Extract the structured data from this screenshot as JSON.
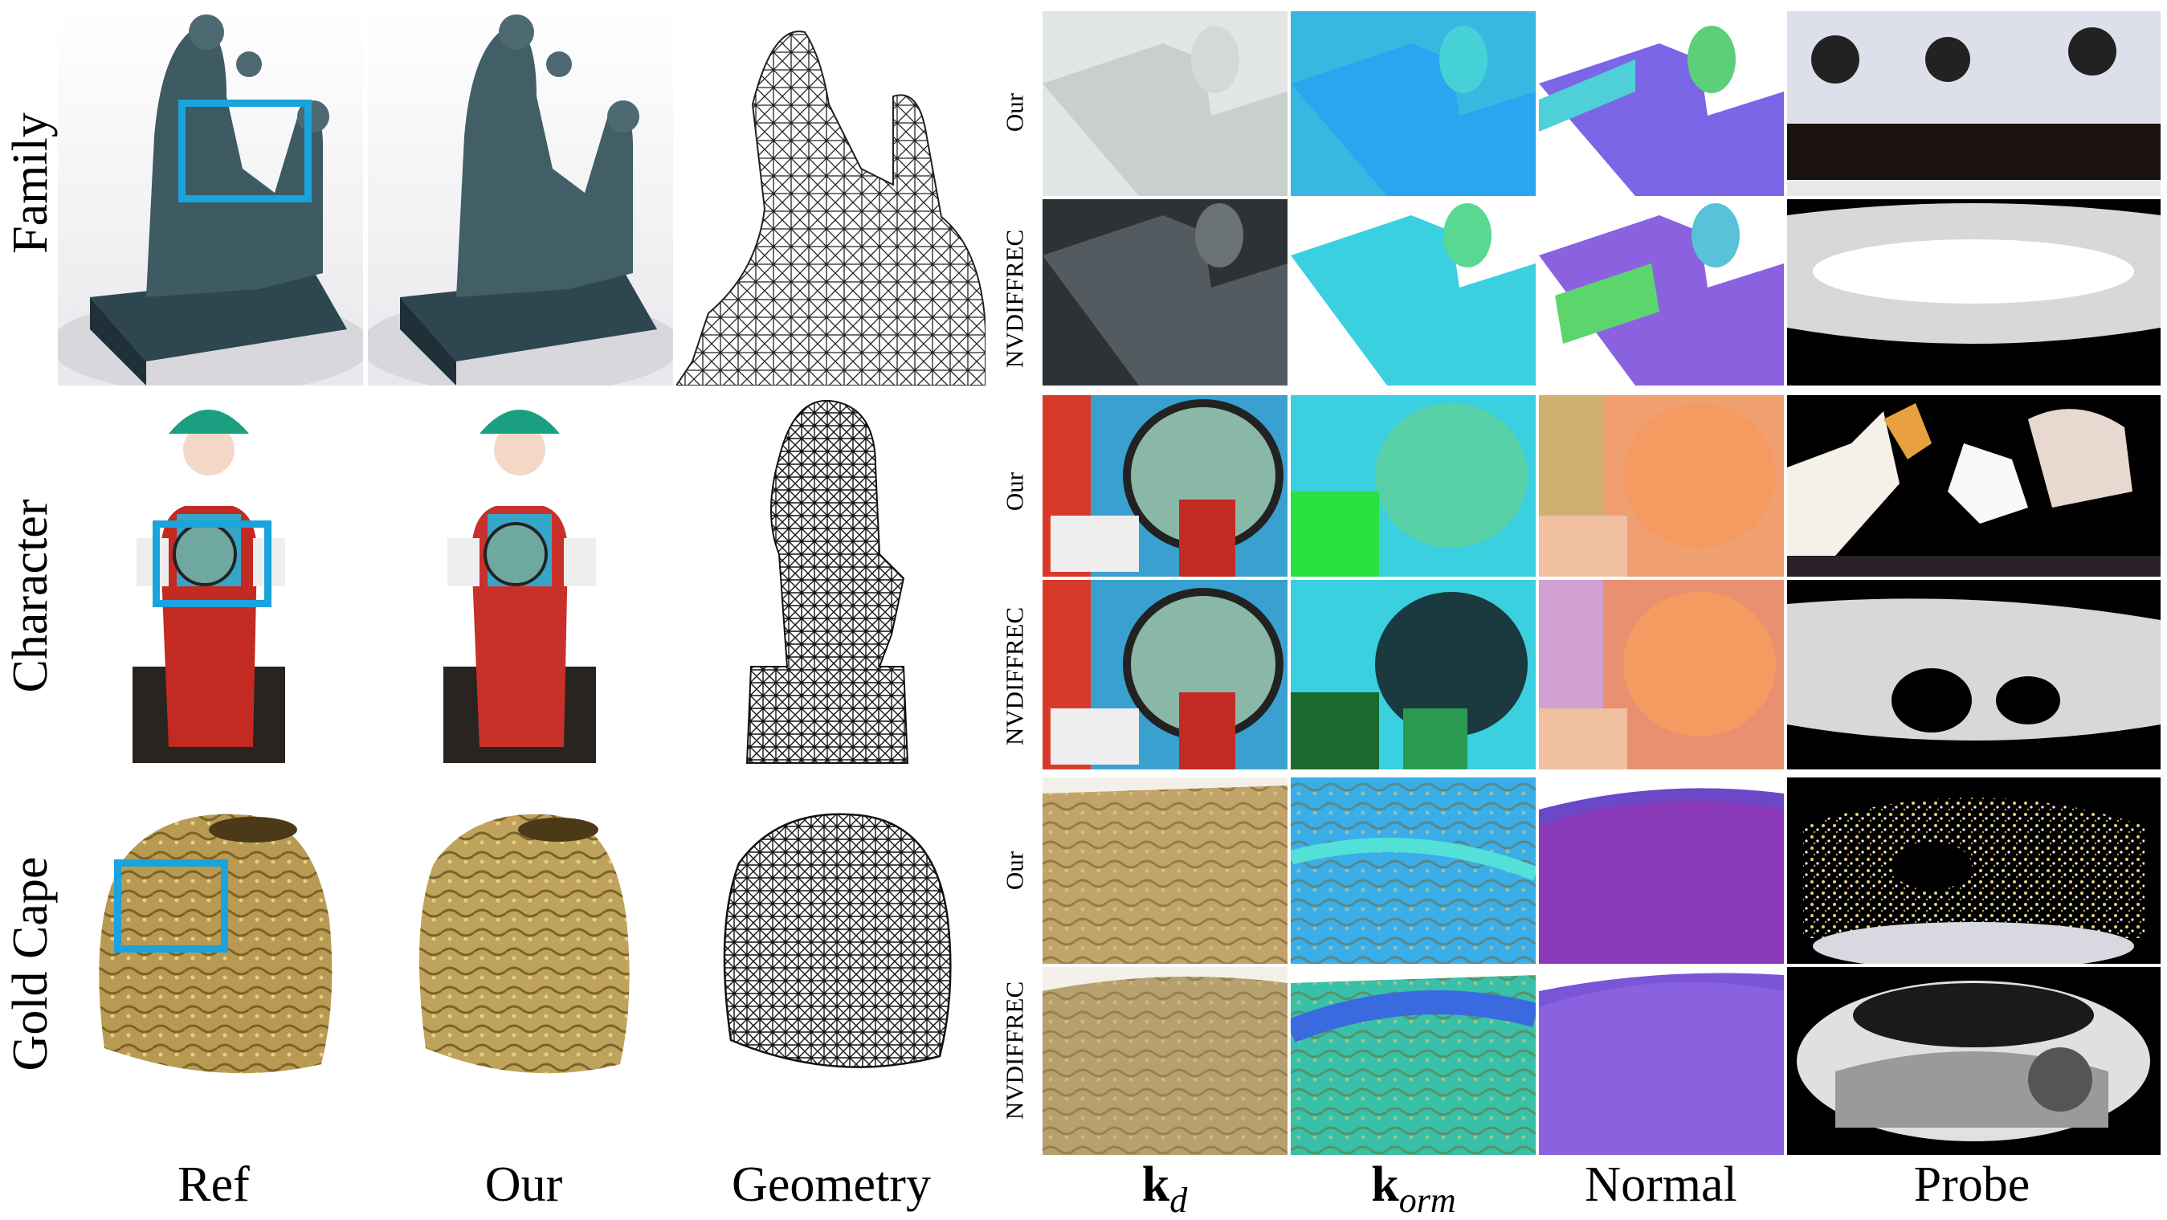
{
  "rows": [
    {
      "id": "family",
      "label": "Family"
    },
    {
      "id": "character",
      "label": "Character"
    },
    {
      "id": "gold-cape",
      "label": "Gold Cape"
    }
  ],
  "methods": {
    "ours": "Our",
    "baseline": "NVDIFFREC"
  },
  "columns": {
    "ref": "Ref",
    "our": "Our",
    "geometry": "Geometry",
    "kd_main": "k",
    "kd_sub": "d",
    "korm_main": "k",
    "korm_sub": "orm",
    "normal": "Normal",
    "probe": "Probe"
  },
  "colors": {
    "highlight_box": "#1aa3dc",
    "statue_bronze": "#3e5a62",
    "character_red": "#c22a22",
    "character_blue": "#35a6c8",
    "gold": "#b89a52",
    "normal_purple": "#7a55d6",
    "normal_orange": "#f09a6a",
    "korm_cyan": "#3ad0e0"
  }
}
